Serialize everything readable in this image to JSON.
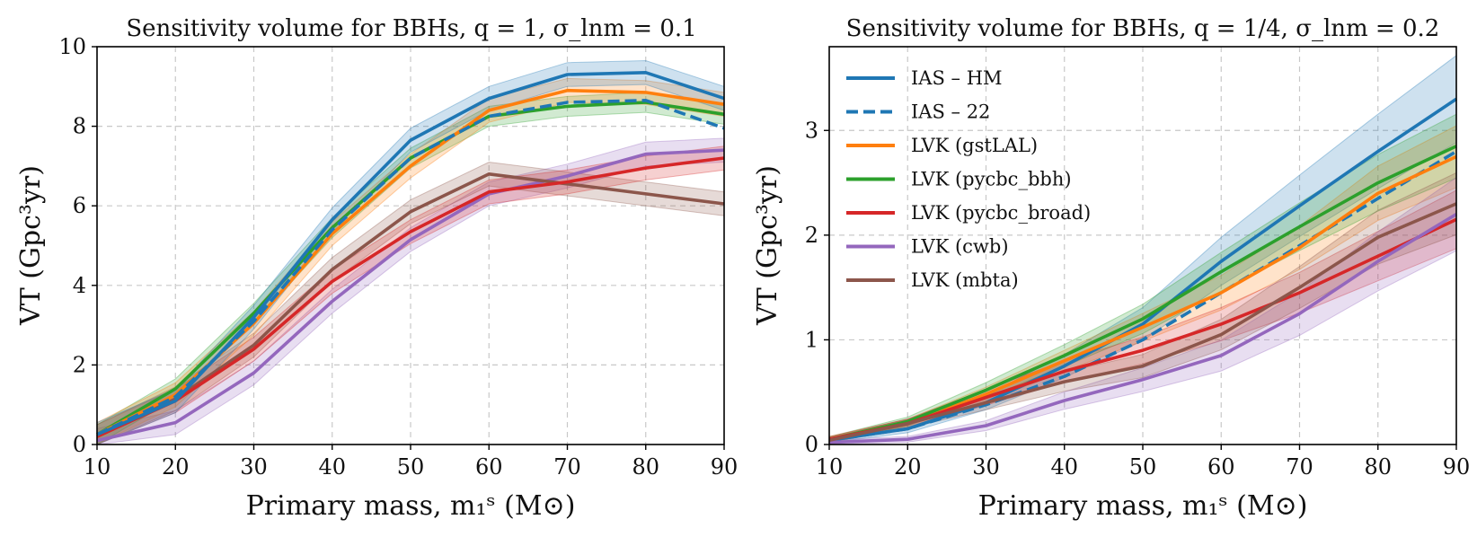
{
  "chart_data": [
    {
      "type": "line",
      "title": "Sensitivity volume for BBHs, q = 1, σ_lnm = 0.1",
      "xlabel": "Primary mass, m₁ˢ (M⊙)",
      "ylabel": "VT (Gpc³yr)",
      "xlim": [
        10,
        90
      ],
      "ylim": [
        0,
        10
      ],
      "xticks": [
        "10",
        "20",
        "30",
        "40",
        "50",
        "60",
        "70",
        "80",
        "90"
      ],
      "yticks": [
        "0",
        "2",
        "4",
        "6",
        "8",
        "10"
      ],
      "grid": true,
      "x": [
        10,
        20,
        30,
        40,
        50,
        60,
        70,
        80,
        90
      ],
      "series": [
        {
          "name": "LVK (cwb)",
          "color": "#9467bd",
          "dash": false,
          "values": [
            0.1,
            0.55,
            1.8,
            3.6,
            5.15,
            6.3,
            6.75,
            7.3,
            7.4
          ],
          "band": 0.3
        },
        {
          "name": "LVK (mbta)",
          "color": "#8c564b",
          "dash": false,
          "values": [
            0.2,
            1.15,
            2.5,
            4.4,
            5.85,
            6.8,
            6.55,
            6.3,
            6.05
          ],
          "band": 0.3
        },
        {
          "name": "LVK (pycbc_broad)",
          "color": "#d62728",
          "dash": false,
          "values": [
            0.2,
            1.1,
            2.4,
            4.1,
            5.35,
            6.35,
            6.6,
            6.95,
            7.2
          ],
          "band": 0.3
        },
        {
          "name": "LVK (pycbc_bbh)",
          "color": "#2ca02c",
          "dash": false,
          "values": [
            0.25,
            1.4,
            3.3,
            5.45,
            7.2,
            8.25,
            8.5,
            8.6,
            8.3
          ],
          "band": 0.25
        },
        {
          "name": "LVK (gstLAL)",
          "color": "#ff7f0e",
          "dash": false,
          "values": [
            0.25,
            1.25,
            3.05,
            5.3,
            7.0,
            8.4,
            8.9,
            8.85,
            8.55
          ],
          "band": 0.3
        },
        {
          "name": "IAS – 22",
          "color": "#1f77b4",
          "dash": true,
          "values": [
            0.25,
            1.2,
            3.1,
            5.4,
            7.2,
            8.25,
            8.6,
            8.65,
            7.95
          ],
          "band": 0
        },
        {
          "name": "IAS – HM",
          "color": "#1f77b4",
          "dash": false,
          "values": [
            0.25,
            1.1,
            3.2,
            5.65,
            7.65,
            8.7,
            9.3,
            9.35,
            8.7
          ],
          "band": 0.3
        }
      ]
    },
    {
      "type": "line",
      "title": "Sensitivity volume for BBHs, q = 1/4, σ_lnm = 0.2",
      "xlabel": "Primary mass, m₁ˢ (M⊙)",
      "ylabel": "VT (Gpc³yr)",
      "xlim": [
        10,
        90
      ],
      "ylim": [
        0,
        3.8
      ],
      "xticks": [
        "10",
        "20",
        "30",
        "40",
        "50",
        "60",
        "70",
        "80",
        "90"
      ],
      "yticks": [
        "0",
        "1",
        "2",
        "3"
      ],
      "ytick_values": [
        0,
        1,
        2,
        3
      ],
      "grid": true,
      "legend_position": "top-left",
      "x": [
        10,
        20,
        30,
        40,
        50,
        60,
        70,
        80,
        90
      ],
      "series": [
        {
          "name": "IAS – HM",
          "color": "#1f77b4",
          "dash": false,
          "values": [
            0.04,
            0.15,
            0.4,
            0.75,
            1.15,
            1.75,
            2.28,
            2.8,
            3.3
          ],
          "band_frac": 0.12
        },
        {
          "name": "IAS – 22",
          "color": "#1f77b4",
          "dash": true,
          "values": [
            0.04,
            0.15,
            0.38,
            0.65,
            1.0,
            1.45,
            1.9,
            2.35,
            2.8
          ],
          "band_frac": 0
        },
        {
          "name": "LVK (gstLAL)",
          "color": "#ff7f0e",
          "dash": false,
          "values": [
            0.05,
            0.2,
            0.48,
            0.8,
            1.12,
            1.45,
            1.88,
            2.4,
            2.75
          ],
          "band_frac": 0.1
        },
        {
          "name": "LVK (pycbc_bbh)",
          "color": "#2ca02c",
          "dash": false,
          "values": [
            0.05,
            0.22,
            0.52,
            0.85,
            1.2,
            1.65,
            2.08,
            2.5,
            2.85
          ],
          "band_frac": 0.1
        },
        {
          "name": "LVK (pycbc_broad)",
          "color": "#d62728",
          "dash": false,
          "values": [
            0.05,
            0.2,
            0.45,
            0.7,
            0.9,
            1.15,
            1.45,
            1.8,
            2.15
          ],
          "band_frac": 0.12
        },
        {
          "name": "LVK (cwb)",
          "color": "#9467bd",
          "dash": false,
          "values": [
            0.02,
            0.05,
            0.18,
            0.42,
            0.62,
            0.85,
            1.25,
            1.75,
            2.2
          ],
          "band_frac": 0.15
        },
        {
          "name": "LVK (mbta)",
          "color": "#8c564b",
          "dash": false,
          "values": [
            0.04,
            0.2,
            0.4,
            0.6,
            0.75,
            1.05,
            1.5,
            1.98,
            2.3
          ],
          "band_frac": 0.12
        }
      ]
    }
  ]
}
